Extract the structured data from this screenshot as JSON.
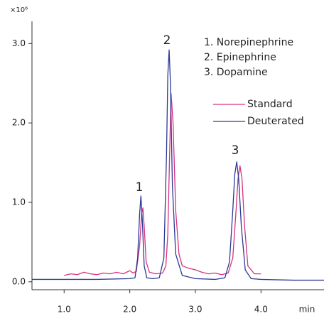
{
  "chart_data": {
    "type": "line",
    "y_unit_label": "×10⁶",
    "x_label": "min",
    "xlim": [
      0.51,
      4.96
    ],
    "ylim": [
      -0.1,
      3.28
    ],
    "xticks": [
      {
        "value": 1,
        "label": "1.0"
      },
      {
        "value": 2,
        "label": "2.0"
      },
      {
        "value": 3,
        "label": "3.0"
      },
      {
        "value": 4,
        "label": "4.0"
      }
    ],
    "yticks": [
      {
        "value": 0,
        "label": "0.0"
      },
      {
        "value": 1,
        "label": "1.0"
      },
      {
        "value": 2,
        "label": "2.0"
      },
      {
        "value": 3,
        "label": "3.0"
      }
    ],
    "grid": false,
    "legend": "upper right",
    "annotations": [
      "1",
      "2",
      "3"
    ],
    "compounds": [
      "1. Norepinephrine",
      "2. Epinephrine",
      "3. Dopamine"
    ],
    "series": [
      {
        "name": "Standard",
        "color": "#d6317e",
        "x": [
          1.0,
          1.1,
          1.2,
          1.3,
          1.4,
          1.5,
          1.6,
          1.7,
          1.8,
          1.9,
          2.0,
          2.05,
          2.1,
          2.15,
          2.18,
          2.2,
          2.22,
          2.25,
          2.3,
          2.4,
          2.5,
          2.55,
          2.58,
          2.61,
          2.63,
          2.66,
          2.7,
          2.75,
          2.8,
          2.9,
          3.0,
          3.1,
          3.2,
          3.3,
          3.4,
          3.5,
          3.57,
          3.62,
          3.65,
          3.68,
          3.71,
          3.75,
          3.8,
          3.9,
          4.0
        ],
        "values": [
          0.08,
          0.1,
          0.09,
          0.12,
          0.1,
          0.09,
          0.11,
          0.1,
          0.12,
          0.1,
          0.14,
          0.11,
          0.13,
          0.45,
          0.85,
          0.93,
          0.7,
          0.25,
          0.12,
          0.1,
          0.11,
          0.2,
          0.6,
          1.7,
          2.37,
          2.0,
          0.9,
          0.35,
          0.2,
          0.17,
          0.15,
          0.12,
          0.1,
          0.11,
          0.09,
          0.11,
          0.3,
          0.9,
          1.3,
          1.46,
          1.3,
          0.7,
          0.2,
          0.1,
          0.1
        ]
      },
      {
        "name": "Deuterated",
        "color": "#2a3a95",
        "x": [
          0.51,
          1.0,
          1.5,
          2.0,
          2.08,
          2.12,
          2.15,
          2.17,
          2.19,
          2.22,
          2.26,
          2.35,
          2.45,
          2.52,
          2.56,
          2.58,
          2.6,
          2.62,
          2.65,
          2.7,
          2.8,
          3.0,
          3.3,
          3.45,
          3.52,
          3.57,
          3.6,
          3.63,
          3.66,
          3.7,
          3.76,
          3.85,
          4.0,
          4.5,
          4.96
        ],
        "values": [
          0.03,
          0.03,
          0.03,
          0.04,
          0.05,
          0.3,
          0.85,
          1.08,
          0.8,
          0.2,
          0.05,
          0.04,
          0.05,
          0.3,
          1.6,
          2.6,
          2.92,
          2.5,
          1.2,
          0.35,
          0.08,
          0.04,
          0.03,
          0.05,
          0.25,
          0.9,
          1.35,
          1.51,
          1.3,
          0.7,
          0.15,
          0.04,
          0.03,
          0.02,
          0.02
        ]
      }
    ]
  }
}
